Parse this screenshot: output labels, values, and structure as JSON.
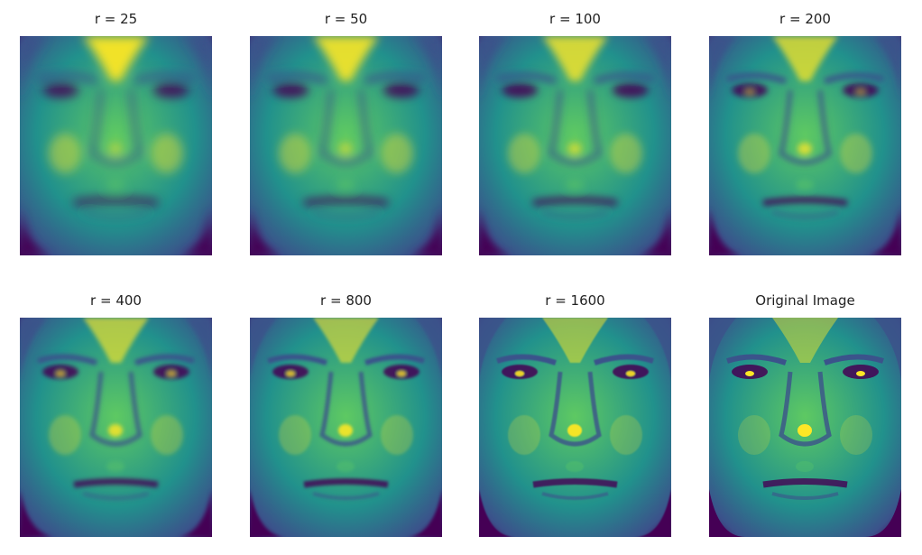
{
  "panels": [
    {
      "title": "r = 25",
      "sharpness": 0.1
    },
    {
      "title": "r = 50",
      "sharpness": 0.2
    },
    {
      "title": "r = 100",
      "sharpness": 0.35
    },
    {
      "title": "r = 200",
      "sharpness": 0.5
    },
    {
      "title": "r = 400",
      "sharpness": 0.65
    },
    {
      "title": "r = 800",
      "sharpness": 0.78
    },
    {
      "title": "r = 1600",
      "sharpness": 0.9
    },
    {
      "title": "Original Image",
      "sharpness": 1.0
    }
  ],
  "colormap": {
    "name": "viridis",
    "stops": [
      "#440154",
      "#3b528b",
      "#21918c",
      "#5ec962",
      "#fde725"
    ]
  }
}
